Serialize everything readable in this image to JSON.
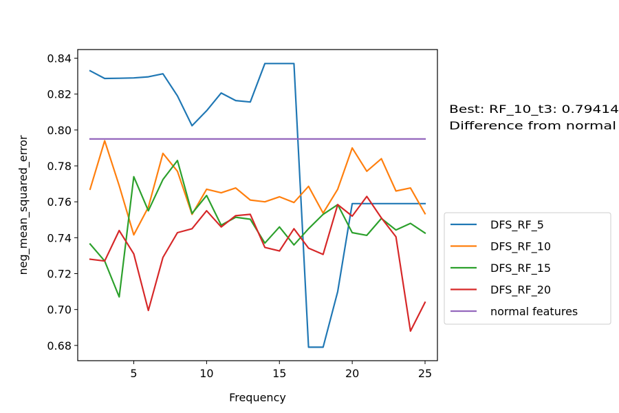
{
  "chart_data": {
    "type": "line",
    "xlabel": "Frequency",
    "ylabel": "neg_mean_squared_error",
    "xlim": [
      1.15,
      25.85
    ],
    "ylim": [
      0.6715,
      0.8448
    ],
    "xticks": [
      5,
      10,
      15,
      20,
      25
    ],
    "yticks": [
      0.68,
      0.7,
      0.72,
      0.74,
      0.76,
      0.78,
      0.8,
      0.82,
      0.84
    ],
    "ytick_labels": [
      "0.68",
      "0.70",
      "0.72",
      "0.74",
      "0.76",
      "0.78",
      "0.80",
      "0.82",
      "0.84"
    ],
    "grid": false,
    "legend_position": "right",
    "x": [
      2,
      3,
      4,
      5,
      6,
      7,
      8,
      9,
      10,
      11,
      12,
      13,
      14,
      15,
      16,
      17,
      18,
      19,
      20,
      21,
      22,
      23,
      24,
      25
    ],
    "series": [
      {
        "name": "DFS_RF_5",
        "color": "#1f77b4",
        "values": [
          0.833,
          0.8287,
          0.8288,
          0.829,
          0.8296,
          0.8313,
          0.819,
          0.8024,
          0.8107,
          0.8206,
          0.8164,
          0.8156,
          0.837,
          0.837,
          0.837,
          0.679,
          0.679,
          0.71,
          0.759,
          0.759,
          0.759,
          0.759,
          0.759,
          0.759
        ]
      },
      {
        "name": "DFS_RF_10",
        "color": "#ff7f0e",
        "values": [
          0.767,
          0.794,
          0.769,
          0.7416,
          0.757,
          0.787,
          0.777,
          0.753,
          0.767,
          0.765,
          0.7677,
          0.761,
          0.76,
          0.7628,
          0.7596,
          0.7686,
          0.7537,
          0.767,
          0.79,
          0.777,
          0.784,
          0.766,
          0.7677,
          0.7534
        ]
      },
      {
        "name": "DFS_RF_15",
        "color": "#2ca02c",
        "values": [
          0.7365,
          0.727,
          0.707,
          0.774,
          0.755,
          0.7724,
          0.783,
          0.7535,
          0.7635,
          0.747,
          0.7514,
          0.7503,
          0.737,
          0.746,
          0.736,
          0.745,
          0.753,
          0.7584,
          0.7428,
          0.7413,
          0.7507,
          0.7443,
          0.748,
          0.7426
        ]
      },
      {
        "name": "DFS_RF_20",
        "color": "#d62728",
        "values": [
          0.728,
          0.727,
          0.744,
          0.731,
          0.6995,
          0.729,
          0.7428,
          0.745,
          0.755,
          0.746,
          0.7523,
          0.753,
          0.7346,
          0.7326,
          0.745,
          0.7342,
          0.7307,
          0.7584,
          0.752,
          0.763,
          0.751,
          0.7405,
          0.688,
          0.704
        ]
      },
      {
        "name": "normal features",
        "color": "#9467bd",
        "values": [
          0.795,
          0.795,
          0.795,
          0.795,
          0.795,
          0.795,
          0.795,
          0.795,
          0.795,
          0.795,
          0.795,
          0.795,
          0.795,
          0.795,
          0.795,
          0.795,
          0.795,
          0.795,
          0.795,
          0.795,
          0.795,
          0.795,
          0.795,
          0.795
        ]
      }
    ],
    "annotations": [
      "Best: RF_10_t3: 0.79414",
      "Difference from normal"
    ]
  }
}
